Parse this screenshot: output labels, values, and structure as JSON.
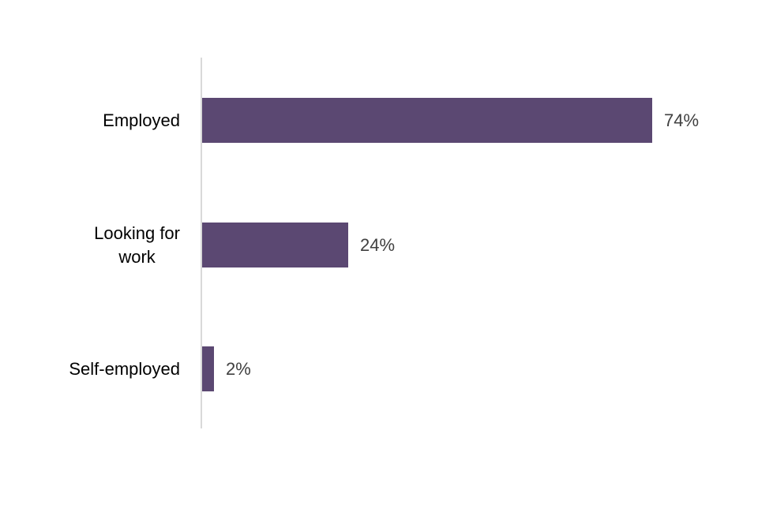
{
  "chart_data": {
    "type": "bar",
    "orientation": "horizontal",
    "title": "",
    "categories": [
      "Employed",
      "Looking for work",
      "Self-employed"
    ],
    "category_display": [
      "Employed",
      "Looking for\nwork",
      "Self-employed"
    ],
    "values": [
      74,
      24,
      2
    ],
    "value_labels": [
      "74%",
      "24%",
      "2%"
    ],
    "grid": false,
    "legend": false,
    "colors": {
      "bar": "#5B4872",
      "axis_line": "#D9D9D9",
      "category_label": "#000000",
      "value_label": "#404040"
    }
  }
}
